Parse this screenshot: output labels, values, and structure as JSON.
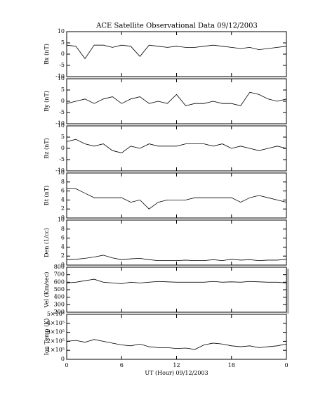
{
  "chart_data": [
    {
      "type": "line",
      "title": "ACE Satellite Observational Data   09/12/2003",
      "ylabel": "Bx (nT)",
      "ylim": [
        -10,
        10
      ],
      "yticks": [
        -10,
        -5,
        0,
        5,
        10
      ],
      "x": [
        0,
        1,
        2,
        3,
        4,
        5,
        6,
        7,
        8,
        9,
        10,
        11,
        12,
        13,
        14,
        15,
        16,
        17,
        18,
        19,
        20,
        21,
        22,
        23,
        24
      ],
      "series": [
        {
          "color": "#000000",
          "values": [
            4,
            3.5,
            -2,
            4,
            4,
            3,
            4,
            3.5,
            -1,
            4,
            3.5,
            3,
            3.5,
            3,
            3,
            3.5,
            4,
            3.5,
            3,
            2.5,
            3,
            2,
            2.5,
            3,
            3.5
          ]
        }
      ]
    },
    {
      "type": "line",
      "ylabel": "By (nT)",
      "ylim": [
        -10,
        10
      ],
      "yticks": [
        -10,
        -5,
        0,
        5,
        10
      ],
      "x": [
        0,
        1,
        2,
        3,
        4,
        5,
        6,
        7,
        8,
        9,
        10,
        11,
        12,
        13,
        14,
        15,
        16,
        17,
        18,
        19,
        20,
        21,
        22,
        23,
        24
      ],
      "series": [
        {
          "color": "#000000",
          "values": [
            -1,
            0,
            1,
            -1,
            1,
            2,
            -1,
            1,
            2,
            -1,
            0,
            -1,
            3,
            -2,
            -1,
            -1,
            0,
            -1,
            -1,
            -2,
            4,
            3,
            1,
            0,
            1
          ]
        }
      ]
    },
    {
      "type": "line",
      "ylabel": "Bz (nT)",
      "ylim": [
        -10,
        10
      ],
      "yticks": [
        -10,
        -5,
        0,
        5,
        10
      ],
      "x": [
        0,
        1,
        2,
        3,
        4,
        5,
        6,
        7,
        8,
        9,
        10,
        11,
        12,
        13,
        14,
        15,
        16,
        17,
        18,
        19,
        20,
        21,
        22,
        23,
        24
      ],
      "series": [
        {
          "color": "#000000",
          "values": [
            3,
            4,
            2,
            1,
            2,
            -1,
            -2,
            1,
            0,
            2,
            1,
            1,
            1,
            2,
            2,
            2,
            1,
            2,
            0,
            1,
            0,
            -1,
            0,
            1,
            0
          ]
        }
      ]
    },
    {
      "type": "line",
      "ylabel": "Bt (nT)",
      "ylim": [
        0,
        10
      ],
      "yticks": [
        0,
        2,
        4,
        6,
        8,
        10
      ],
      "x": [
        0,
        1,
        2,
        3,
        4,
        5,
        6,
        7,
        8,
        9,
        10,
        11,
        12,
        13,
        14,
        15,
        16,
        17,
        18,
        19,
        20,
        21,
        22,
        23,
        24
      ],
      "series": [
        {
          "color": "#000000",
          "values": [
            6.5,
            6.5,
            5.5,
            4.5,
            4.5,
            4.5,
            4.5,
            3.5,
            4,
            2,
            3.5,
            4,
            4,
            4,
            4.5,
            4.5,
            4.5,
            4.5,
            4.5,
            3.5,
            4.5,
            5,
            4.5,
            4,
            3.5
          ]
        }
      ]
    },
    {
      "type": "line",
      "ylabel": "Den (1/cc)",
      "ylim": [
        0,
        10
      ],
      "yticks": [
        0,
        2,
        4,
        6,
        8,
        10
      ],
      "x": [
        0,
        1,
        2,
        3,
        4,
        5,
        6,
        7,
        8,
        9,
        10,
        11,
        12,
        13,
        14,
        15,
        16,
        17,
        18,
        19,
        20,
        21,
        22,
        23,
        24
      ],
      "series": [
        {
          "color": "#000000",
          "values": [
            1.2,
            1.3,
            1.5,
            1.8,
            2.2,
            1.6,
            1.2,
            1.4,
            1.5,
            1.2,
            1,
            1,
            1,
            1.1,
            1,
            1,
            1.2,
            1,
            1.3,
            1.1,
            1.2,
            1,
            1.1,
            1.1,
            1.3
          ]
        }
      ]
    },
    {
      "type": "line",
      "ylabel": "Vel (Km/sec)",
      "ylim": [
        200,
        800
      ],
      "yticks": [
        200,
        300,
        400,
        500,
        600,
        700,
        800
      ],
      "x": [
        0,
        1,
        2,
        3,
        4,
        5,
        6,
        7,
        8,
        9,
        10,
        11,
        12,
        13,
        14,
        15,
        16,
        17,
        18,
        19,
        20,
        21,
        22,
        23,
        24
      ],
      "series": [
        {
          "color": "#000000",
          "values": [
            590,
            600,
            620,
            640,
            600,
            590,
            580,
            600,
            590,
            600,
            610,
            605,
            600,
            600,
            600,
            600,
            610,
            600,
            605,
            600,
            610,
            605,
            600,
            600,
            590
          ]
        }
      ]
    },
    {
      "type": "line",
      "ylabel": "Ion Temp (K)",
      "xlabel": "UT (Hour)  09/12/2003",
      "ylim": [
        0,
        500000
      ],
      "yticks": [
        0,
        {
          "value": 100000,
          "label": "1×10⁵"
        },
        {
          "value": 200000,
          "label": "2×10⁵"
        },
        {
          "value": 300000,
          "label": "3×10⁵"
        },
        {
          "value": 400000,
          "label": "4×10⁵"
        },
        {
          "value": 500000,
          "label": "5×10⁵"
        }
      ],
      "xlim": [
        0,
        24
      ],
      "xticks": [
        0,
        6,
        12,
        18,
        {
          "value": 24,
          "label": "0"
        }
      ],
      "x": [
        0,
        1,
        2,
        3,
        4,
        5,
        6,
        7,
        8,
        9,
        10,
        11,
        12,
        13,
        14,
        15,
        16,
        17,
        18,
        19,
        20,
        21,
        22,
        23,
        24
      ],
      "series": [
        {
          "color": "#000000",
          "values": [
            200000,
            210000,
            190000,
            220000,
            200000,
            180000,
            160000,
            150000,
            170000,
            140000,
            130000,
            130000,
            120000,
            125000,
            110000,
            160000,
            180000,
            170000,
            150000,
            140000,
            150000,
            130000,
            140000,
            150000,
            170000
          ]
        }
      ]
    }
  ]
}
